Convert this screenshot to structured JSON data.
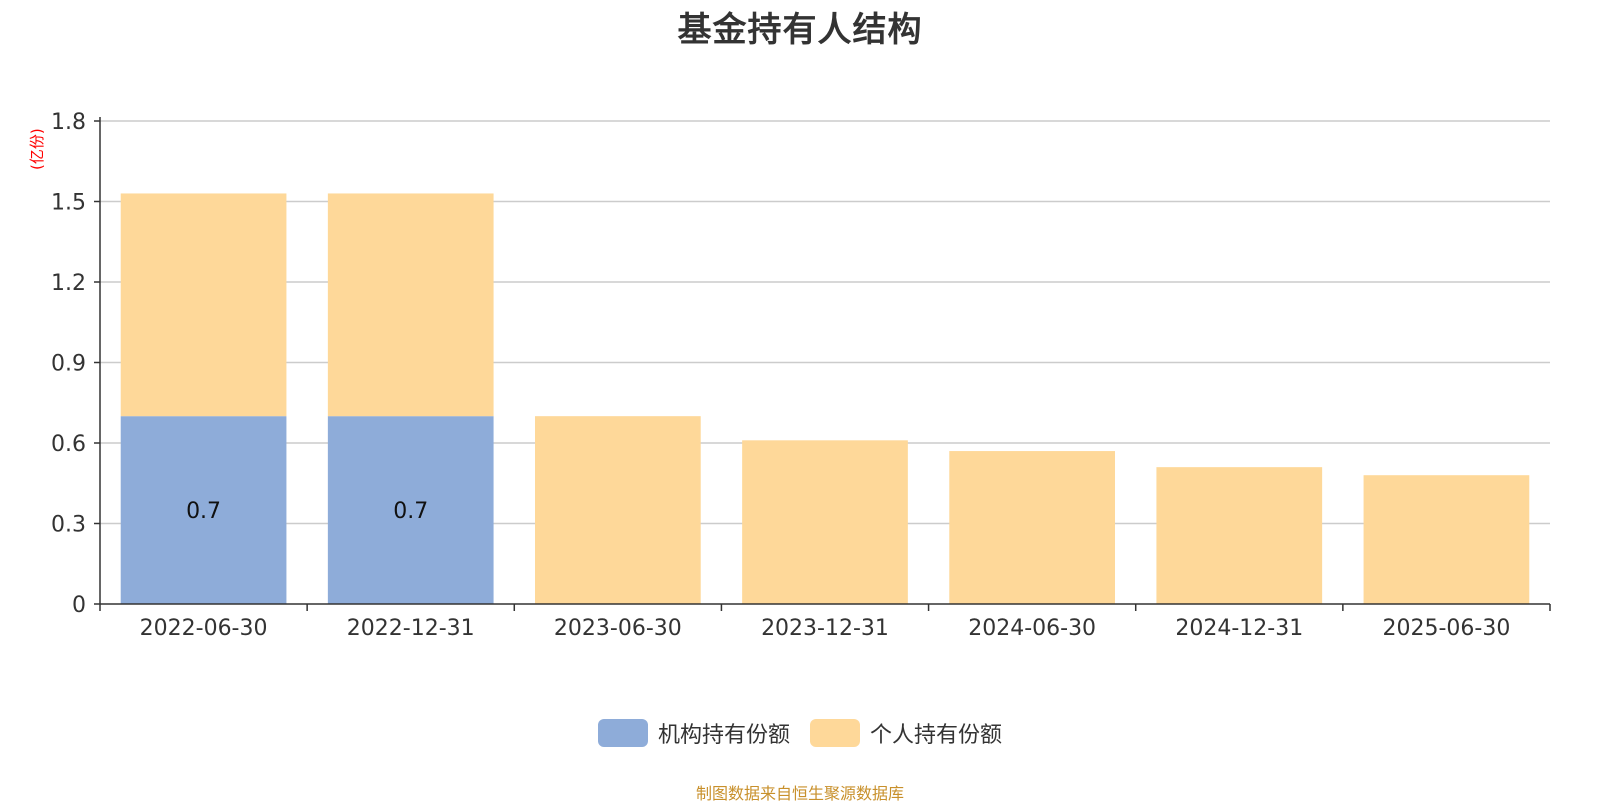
{
  "title": "基金持有人结构",
  "unit_label": "(亿份)",
  "footer": "制图数据来自恒生聚源数据库",
  "chart_data": {
    "type": "bar",
    "stacked": true,
    "categories": [
      "2022-06-30",
      "2022-12-31",
      "2023-06-30",
      "2023-12-31",
      "2024-06-30",
      "2024-12-31",
      "2025-06-30"
    ],
    "series": [
      {
        "name": "机构持有份额",
        "color": "#8eacd9",
        "values": [
          0.7,
          0.7,
          0,
          0,
          0,
          0,
          0
        ],
        "labels": [
          "0.7",
          "0.7",
          "",
          "",
          "",
          "",
          ""
        ]
      },
      {
        "name": "个人持有份额",
        "color": "#fed899",
        "values": [
          0.83,
          0.83,
          0.7,
          0.61,
          0.57,
          0.51,
          0.48
        ],
        "labels": [
          "",
          "",
          "",
          "",
          "",
          "",
          ""
        ]
      }
    ],
    "yticks": [
      "0",
      "0.3",
      "0.6",
      "0.9",
      "1.2",
      "1.5",
      "1.8"
    ],
    "ylim": [
      0,
      1.8
    ],
    "grid": true,
    "legend_position": "bottom"
  }
}
